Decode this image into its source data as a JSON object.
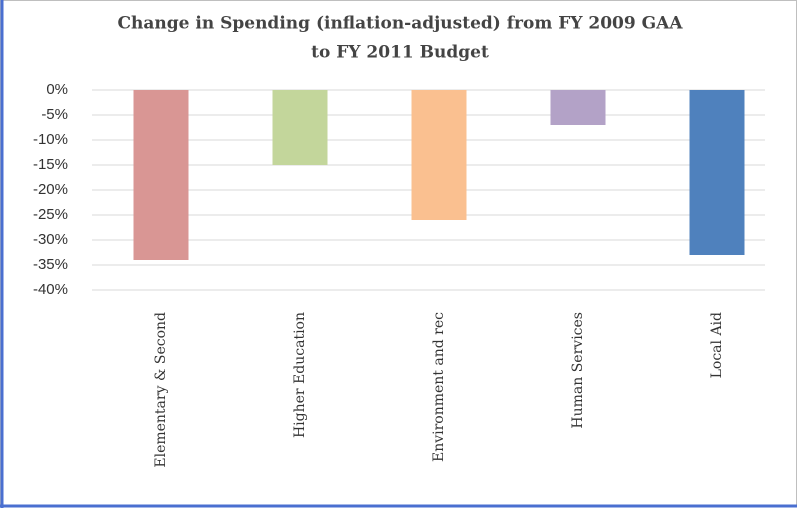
{
  "chart_data": {
    "type": "bar",
    "title": [
      "Change in Spending (inflation-adjusted) from FY 2009 GAA",
      "to FY 2011 Budget"
    ],
    "categories": [
      "Elementary & Second",
      "Higher Education",
      "Environment and rec",
      "Human Services",
      "Local Aid"
    ],
    "values": [
      -34,
      -15,
      -26,
      -7,
      -33
    ],
    "colors": [
      "#d99694",
      "#c3d69b",
      "#fac090",
      "#b3a2c7",
      "#4f81bd"
    ],
    "ylim": [
      -40,
      0
    ],
    "yticks": [
      {
        "value": 0,
        "label": "0%"
      },
      {
        "value": -5,
        "label": "-5%"
      },
      {
        "value": -10,
        "label": "-10%"
      },
      {
        "value": -15,
        "label": "-15%"
      },
      {
        "value": -20,
        "label": "-20%"
      },
      {
        "value": -25,
        "label": "-25%"
      },
      {
        "value": -30,
        "label": "-30%"
      },
      {
        "value": -35,
        "label": "-35%"
      },
      {
        "value": -40,
        "label": "-40%"
      }
    ],
    "grid": true
  }
}
